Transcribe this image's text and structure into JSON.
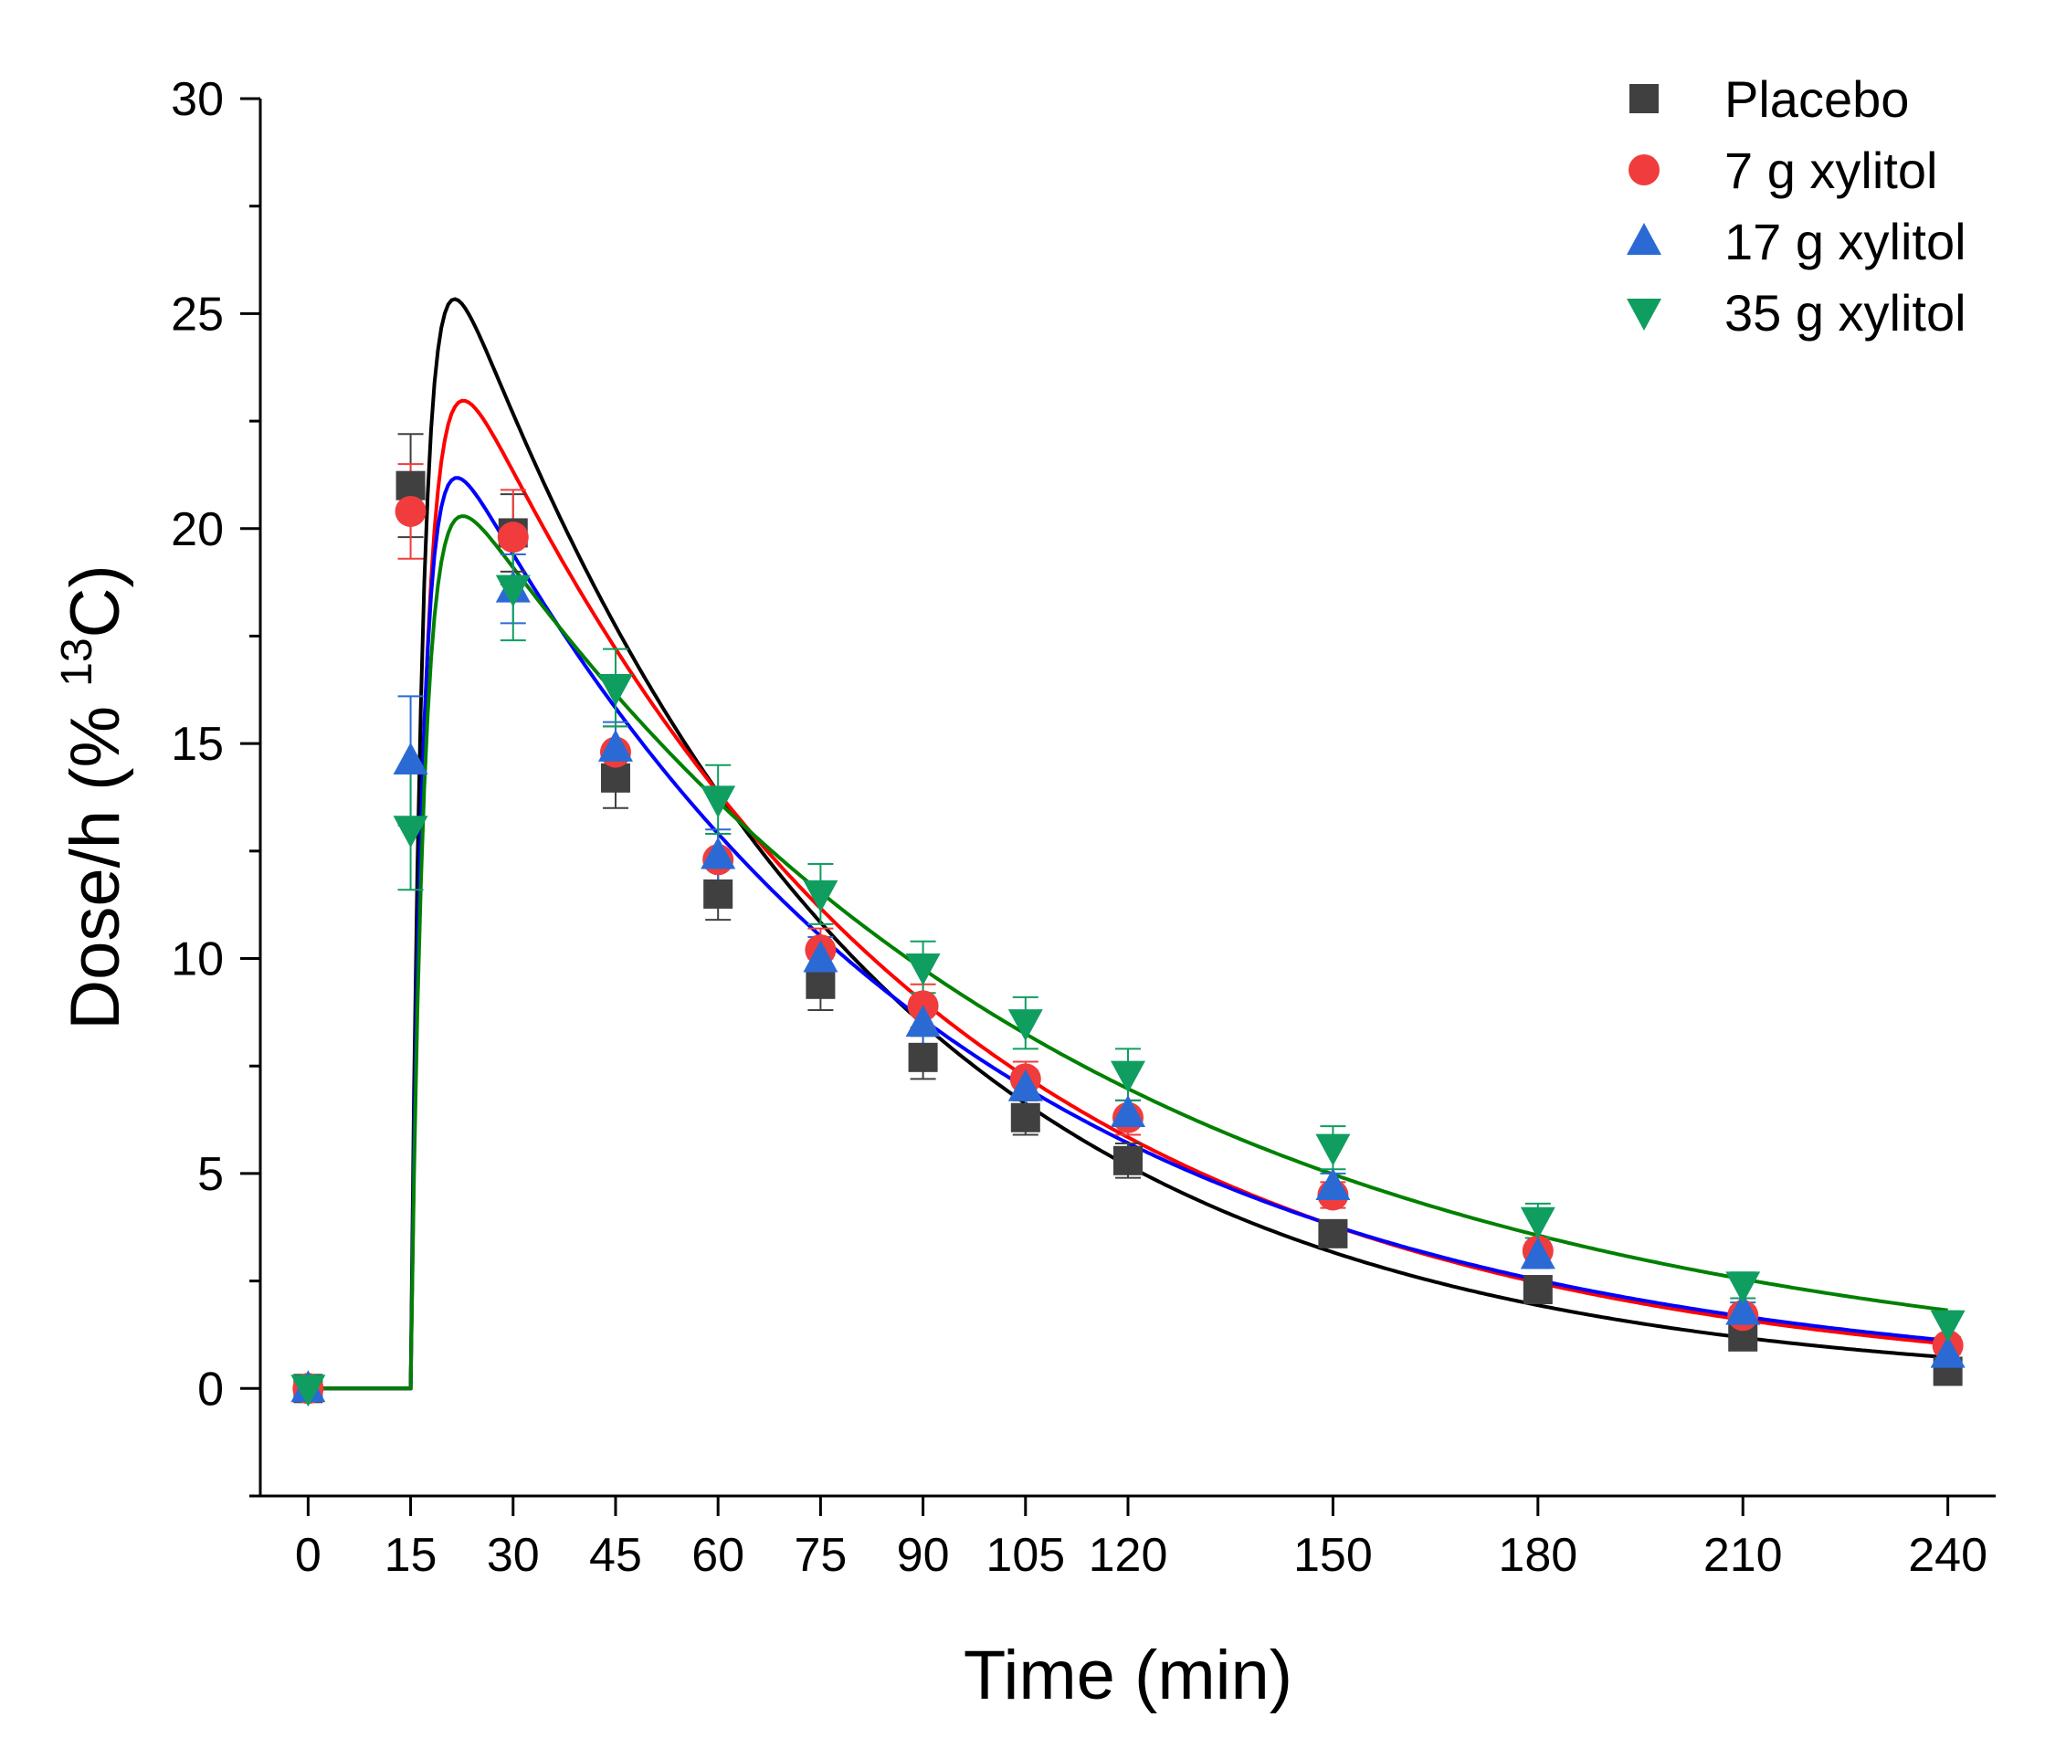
{
  "chart_data": {
    "type": "scatter",
    "title": "",
    "xlabel": "Time (min)",
    "ylabel_main": "Dose/h (% ",
    "ylabel_sup": "13",
    "ylabel_end": "C)",
    "xlim": [
      -7,
      247
    ],
    "ylim": [
      -2.5,
      30
    ],
    "xticks": [
      0,
      15,
      30,
      45,
      60,
      75,
      90,
      105,
      120,
      150,
      180,
      210,
      240
    ],
    "xtick_labels": [
      "0",
      "15",
      "30",
      "45",
      "60",
      "75",
      "90",
      "105",
      "120",
      "150",
      "180",
      "210",
      "240"
    ],
    "yticks": [
      0,
      5,
      10,
      15,
      20,
      25,
      30
    ],
    "ytick_labels": [
      "0",
      "5",
      "10",
      "15",
      "20",
      "25",
      "30"
    ],
    "legend_position": "top-right",
    "x": [
      0,
      15,
      30,
      45,
      60,
      75,
      90,
      105,
      120,
      150,
      180,
      210,
      240
    ],
    "series": [
      {
        "name": "Placebo",
        "marker": "square",
        "color": "#404040",
        "fit_color": "#000000",
        "values": [
          0,
          21.0,
          19.9,
          14.2,
          11.5,
          9.4,
          7.7,
          6.3,
          5.3,
          3.6,
          2.3,
          1.2,
          0.4
        ],
        "errors": [
          0,
          1.2,
          0.9,
          0.7,
          0.6,
          0.6,
          0.5,
          0.4,
          0.4,
          0.3,
          0.3,
          0.2,
          0.2
        ],
        "fit": {
          "t0": 15,
          "A": 29,
          "k": 0.0164,
          "ka": 0.55
        }
      },
      {
        "name": "7 g xylitol",
        "marker": "circle",
        "color": "#f03c3c",
        "fit_color": "#ff0000",
        "values": [
          0,
          20.4,
          19.8,
          14.8,
          12.3,
          10.2,
          8.9,
          7.2,
          6.3,
          4.5,
          3.2,
          1.7,
          1.0
        ],
        "errors": [
          0,
          1.1,
          1.1,
          0.6,
          0.6,
          0.5,
          0.5,
          0.4,
          0.4,
          0.3,
          0.3,
          0.2,
          0.2
        ],
        "fit": {
          "t0": 15,
          "A": 26.5,
          "k": 0.0144,
          "ka": 0.45
        }
      },
      {
        "name": "17 g xylitol",
        "marker": "triangle-up",
        "color": "#2b6ad4",
        "fit_color": "#0000ff",
        "values": [
          0,
          14.6,
          18.6,
          14.9,
          12.4,
          10.0,
          8.5,
          7.0,
          6.4,
          4.7,
          3.1,
          1.8,
          0.8
        ],
        "errors": [
          0,
          1.5,
          0.8,
          0.6,
          0.6,
          0.5,
          0.5,
          0.4,
          0.3,
          0.3,
          0.3,
          0.2,
          0.2
        ],
        "fit": {
          "t0": 15,
          "A": 23.8,
          "k": 0.0136,
          "ka": 0.55
        }
      },
      {
        "name": "35 g xylitol",
        "marker": "triangle-down",
        "color": "#0f9e60",
        "fit_color": "#008000",
        "values": [
          0,
          13.0,
          18.6,
          16.3,
          13.7,
          11.5,
          9.8,
          8.5,
          7.3,
          5.6,
          3.9,
          2.4,
          1.5
        ],
        "errors": [
          0,
          1.4,
          1.2,
          0.9,
          0.8,
          0.7,
          0.6,
          0.6,
          0.6,
          0.5,
          0.4,
          0.3,
          0.3
        ],
        "fit": {
          "t0": 15,
          "A": 22.6,
          "k": 0.0112,
          "ka": 0.5
        }
      }
    ]
  }
}
